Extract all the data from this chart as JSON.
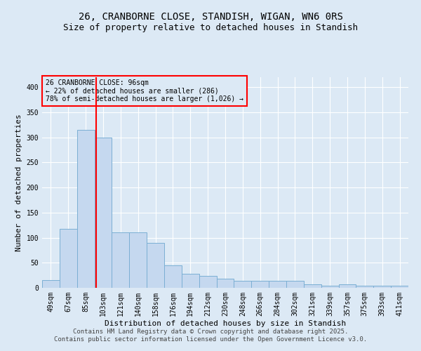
{
  "title_line1": "26, CRANBORNE CLOSE, STANDISH, WIGAN, WN6 0RS",
  "title_line2": "Size of property relative to detached houses in Standish",
  "xlabel": "Distribution of detached houses by size in Standish",
  "ylabel": "Number of detached properties",
  "footer_line1": "Contains HM Land Registry data © Crown copyright and database right 2025.",
  "footer_line2": "Contains public sector information licensed under the Open Government Licence v3.0.",
  "annotation_line1": "26 CRANBORNE CLOSE: 96sqm",
  "annotation_line2": "← 22% of detached houses are smaller (286)",
  "annotation_line3": "78% of semi-detached houses are larger (1,026) →",
  "bin_labels": [
    "49sqm",
    "67sqm",
    "85sqm",
    "103sqm",
    "121sqm",
    "140sqm",
    "158sqm",
    "176sqm",
    "194sqm",
    "212sqm",
    "230sqm",
    "248sqm",
    "266sqm",
    "284sqm",
    "302sqm",
    "321sqm",
    "339sqm",
    "357sqm",
    "375sqm",
    "393sqm",
    "411sqm"
  ],
  "bar_heights": [
    15,
    118,
    315,
    300,
    110,
    110,
    90,
    45,
    28,
    24,
    18,
    14,
    14,
    14,
    14,
    7,
    4,
    7,
    4,
    4,
    4
  ],
  "bar_color": "#c5d8ef",
  "bar_edge_color": "#7bafd4",
  "red_line_x": 2.61,
  "ylim": [
    0,
    420
  ],
  "yticks": [
    0,
    50,
    100,
    150,
    200,
    250,
    300,
    350,
    400
  ],
  "background_color": "#dce9f5",
  "grid_color": "#ffffff",
  "title_fontsize": 10,
  "subtitle_fontsize": 9,
  "axis_label_fontsize": 8,
  "tick_fontsize": 7,
  "annotation_fontsize": 7,
  "footer_fontsize": 6.5
}
